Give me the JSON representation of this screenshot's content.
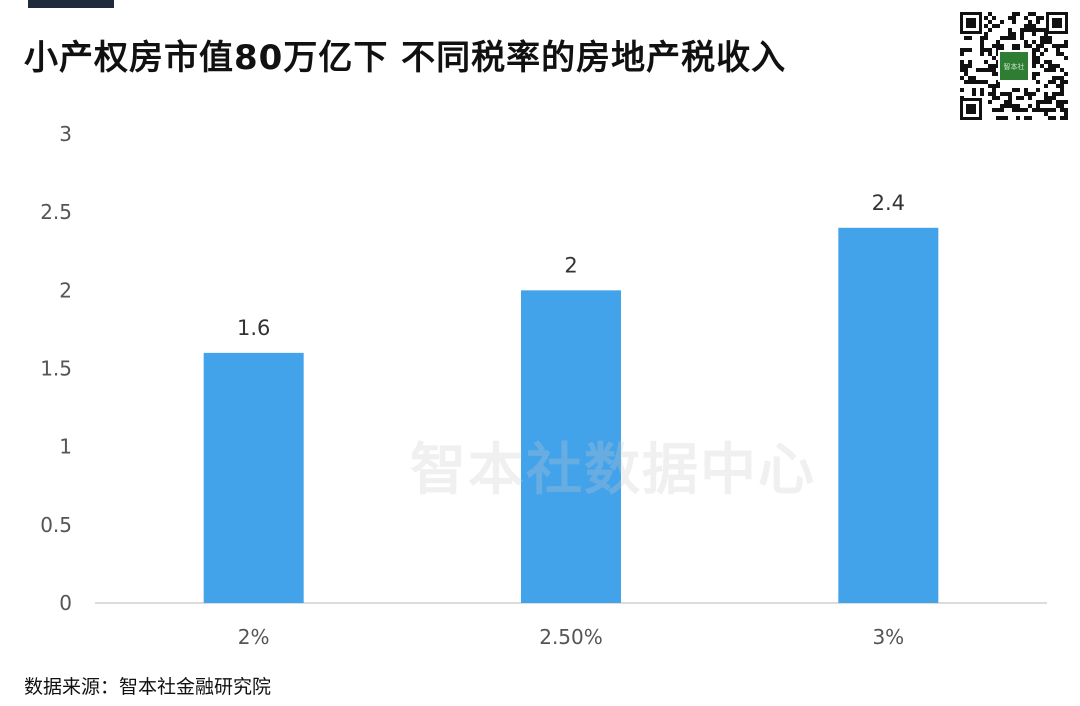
{
  "title": "小产权房市值80万亿下  不同税率的房地产税收入",
  "watermark": "智本社数据中心",
  "source": "数据来源：智本社金融研究院",
  "qr_center_text": "智本社",
  "colors": {
    "bar": "#42a2ea",
    "axis": "#d0d0d0",
    "title_bar": "#1f2a3a",
    "qr_center": "#2e7d32"
  },
  "chart_data": {
    "type": "bar",
    "title": "小产权房市值80万亿下  不同税率的房地产税收入",
    "categories": [
      "2%",
      "2.50%",
      "3%"
    ],
    "values": [
      1.6,
      2,
      2.4
    ],
    "data_labels": [
      "1.6",
      "2",
      "2.4"
    ],
    "xlabel": "",
    "ylabel": "",
    "ylim": [
      0,
      3
    ],
    "yticks": [
      "0",
      "0.5",
      "1",
      "1.5",
      "2",
      "2.5",
      "3"
    ],
    "grid": false,
    "legend": "none"
  }
}
